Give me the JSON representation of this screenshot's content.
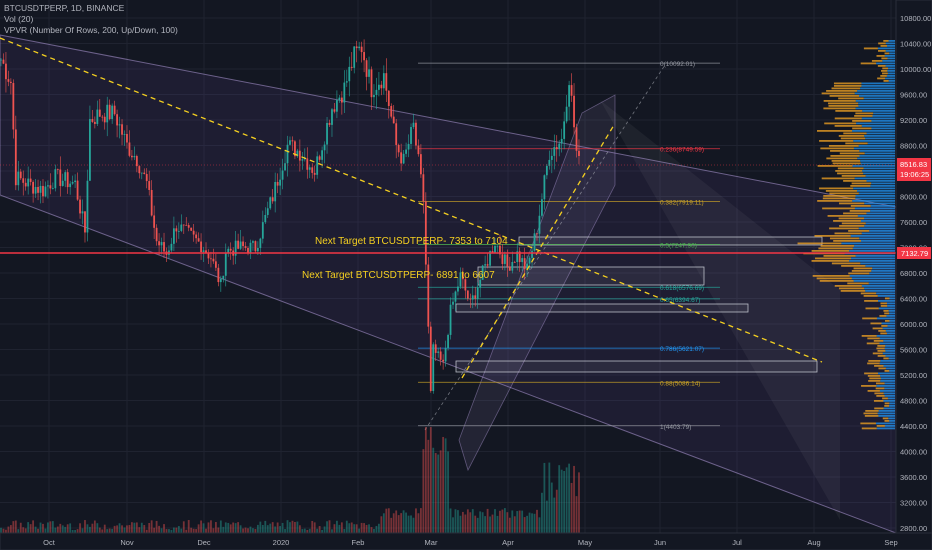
{
  "symbol_line": "BTCUSDTPERP, 1D, BINANCE",
  "vol_line": "Vol (20)",
  "vpvr_line": "VPVR (Number Of Rows, 200, Up/Down, 100)",
  "annotations": {
    "target1": "Next Target BTCUSDTPERP- 7353 to 7104",
    "target2": "Next Target BTCUSDTPERP- 6891 to 6607"
  },
  "fib_levels": [
    {
      "ratio": "0",
      "price": "10092.01",
      "label": "0(10092.01)",
      "color": "#9598a1"
    },
    {
      "ratio": "0.236",
      "price": "8749.59",
      "label": "0.236(8749.59)",
      "color": "#f23645"
    },
    {
      "ratio": "0.382",
      "price": "7919.11",
      "label": "0.382(7919.11)",
      "color": "#c9a227"
    },
    {
      "ratio": "0.5",
      "price": "7247.90",
      "label": "0.5(7247.90)",
      "color": "#4caf50"
    },
    {
      "ratio": "0.618",
      "price": "6576.69",
      "label": "0.618(6576.69)",
      "color": "#26a69a"
    },
    {
      "ratio": "0.65",
      "price": "6394.67",
      "label": "0.65(6394.67)",
      "color": "#26a69a"
    },
    {
      "ratio": "0.786",
      "price": "5621.07",
      "label": "0.786(5621.07)",
      "color": "#2196f3"
    },
    {
      "ratio": "0.88",
      "price": "5086.14",
      "label": "0.88(5086.14)",
      "color": "#c9a227"
    },
    {
      "ratio": "1",
      "price": "4403.79",
      "label": "1(4403.79)",
      "color": "#9598a1"
    }
  ],
  "price_axis": [
    "10800.00",
    "10400.00",
    "10000.00",
    "9600.00",
    "9200.00",
    "8800.00",
    "8400.00",
    "8000.00",
    "7600.00",
    "7200.00",
    "6800.00",
    "6400.00",
    "6000.00",
    "5600.00",
    "5200.00",
    "4800.00",
    "4400.00",
    "4000.00",
    "3600.00",
    "3200.00",
    "2800.00"
  ],
  "time_axis": [
    "Oct",
    "Nov",
    "Dec",
    "2020",
    "Feb",
    "Mar",
    "Apr",
    "May",
    "Jun",
    "Jul",
    "Aug",
    "Sep"
  ],
  "price_badges": {
    "current_price": "8516.83",
    "countdown": "19:06:25",
    "hline_price": "7132.79"
  },
  "colors": {
    "background": "#131722",
    "up": "#26a69a",
    "down": "#ef5350",
    "trendline": "#f5d020",
    "channel": "#b39ddb",
    "vp_up": "#2196f3",
    "vp_down": "#f5a623",
    "hline": "#f23645"
  },
  "chart_data": {
    "type": "candlestick",
    "price_range": [
      2800,
      10800
    ],
    "close_path": [
      [
        "2019-09-20",
        10150
      ],
      [
        "2019-09-24",
        9800
      ],
      [
        "2019-09-26",
        8300
      ],
      [
        "2019-10-01",
        8200
      ],
      [
        "2019-10-07",
        8100
      ],
      [
        "2019-10-12",
        8300
      ],
      [
        "2019-10-20",
        8200
      ],
      [
        "2019-10-24",
        7450
      ],
      [
        "2019-10-26",
        9200
      ],
      [
        "2019-10-30",
        9300
      ],
      [
        "2019-11-05",
        9300
      ],
      [
        "2019-11-10",
        8800
      ],
      [
        "2019-11-14",
        8600
      ],
      [
        "2019-11-18",
        8200
      ],
      [
        "2019-11-22",
        7300
      ],
      [
        "2019-11-26",
        7100
      ],
      [
        "2019-11-30",
        7550
      ],
      [
        "2019-12-05",
        7400
      ],
      [
        "2019-12-10",
        7250
      ],
      [
        "2019-12-14",
        7050
      ],
      [
        "2019-12-18",
        6600
      ],
      [
        "2019-12-20",
        7150
      ],
      [
        "2019-12-26",
        7200
      ],
      [
        "2020-01-01",
        7200
      ],
      [
        "2020-01-08",
        8000
      ],
      [
        "2020-01-14",
        8800
      ],
      [
        "2020-01-19",
        8700
      ],
      [
        "2020-01-25",
        8400
      ],
      [
        "2020-02-01",
        9400
      ],
      [
        "2020-02-06",
        9700
      ],
      [
        "2020-02-10",
        10200
      ],
      [
        "2020-02-13",
        10350
      ],
      [
        "2020-02-17",
        9700
      ],
      [
        "2020-02-22",
        9900
      ],
      [
        "2020-02-27",
        8800
      ],
      [
        "2020-03-01",
        8550
      ],
      [
        "2020-03-05",
        9100
      ],
      [
        "2020-03-09",
        7950
      ],
      [
        "2020-03-12",
        4900
      ],
      [
        "2020-03-13",
        5600
      ],
      [
        "2020-03-17",
        5350
      ],
      [
        "2020-03-20",
        6200
      ],
      [
        "2020-03-24",
        6750
      ],
      [
        "2020-03-28",
        6300
      ],
      [
        "2020-04-02",
        6800
      ],
      [
        "2020-04-07",
        7300
      ],
      [
        "2020-04-12",
        6900
      ],
      [
        "2020-04-16",
        7100
      ],
      [
        "2020-04-20",
        6850
      ],
      [
        "2020-04-24",
        7500
      ],
      [
        "2020-04-29",
        8700
      ],
      [
        "2020-05-04",
        8900
      ],
      [
        "2020-05-07",
        9900
      ],
      [
        "2020-05-10",
        8700
      ],
      [
        "2020-05-11",
        8516
      ]
    ]
  }
}
